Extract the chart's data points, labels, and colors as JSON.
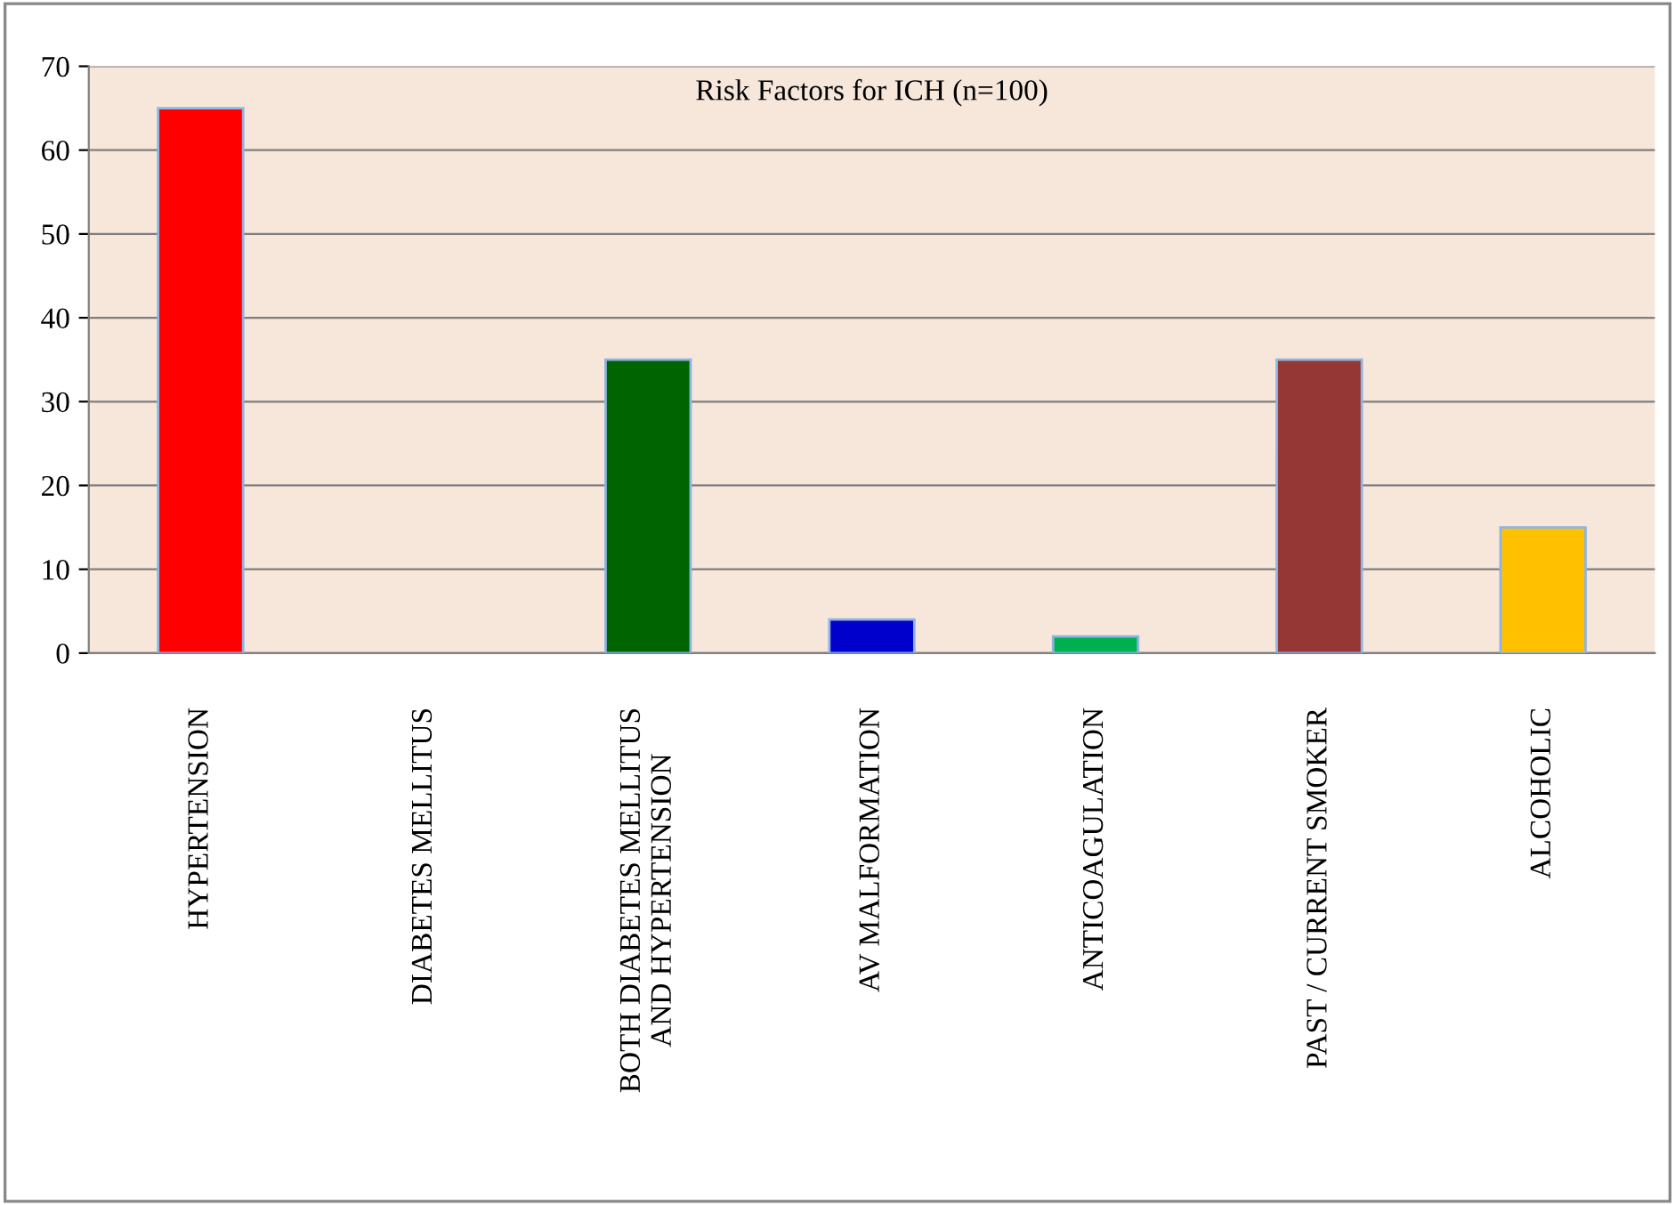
{
  "chart_data": {
    "type": "bar",
    "title": "Risk Factors for ICH (n=100)",
    "categories": [
      "HYPERTENSION",
      "DIABETES MELLITUS",
      "BOTH DIABETES MELLITUS AND HYPERTENSION",
      "AV MALFORMATION",
      "ANTICOAGULATION",
      "PAST / CURRENT SMOKER",
      "ALCOHOLIC"
    ],
    "values": [
      65,
      0,
      35,
      4,
      2,
      35,
      15
    ],
    "colors": [
      "#ff0000",
      "#00b050",
      "#006400",
      "#0000cc",
      "#00b050",
      "#953735",
      "#ffc000"
    ],
    "ylim": [
      0,
      70
    ],
    "yticks": [
      0,
      10,
      20,
      30,
      40,
      50,
      60,
      70
    ],
    "grid": "y"
  }
}
